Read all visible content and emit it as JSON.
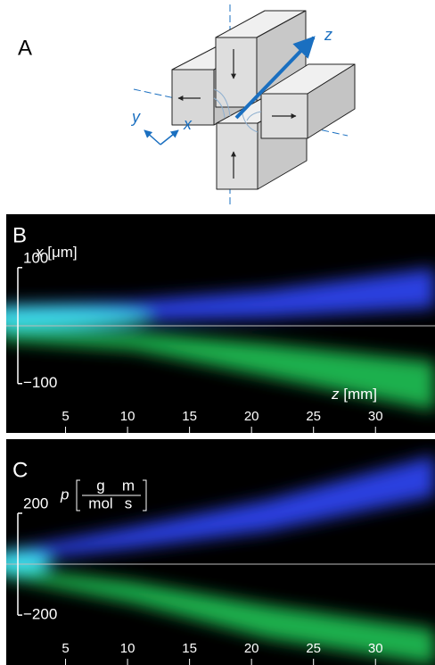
{
  "panels": [
    {
      "label": "A",
      "axes": [
        "x",
        "y",
        "z"
      ]
    },
    {
      "label": "B",
      "y_label": {
        "symbol": "x",
        "unit": "[μm]"
      },
      "z_label": {
        "symbol": "z",
        "unit": "[mm]"
      },
      "zlim": [
        0,
        34.8
      ],
      "zticks": [
        5,
        10,
        15,
        20,
        25,
        30
      ],
      "ylim": [
        -185,
        192
      ],
      "yticks": [
        100,
        {
          "value": -100,
          "label": "−100"
        }
      ]
    },
    {
      "label": "C",
      "y_label": {
        "symbol": "p",
        "unit_num": [
          "g",
          "m"
        ],
        "unit_den": [
          "mol",
          "s"
        ]
      },
      "zlim": [
        0,
        34.8
      ],
      "zticks": [
        5,
        10,
        15,
        20,
        25,
        30
      ],
      "ylim": [
        -396,
        491
      ],
      "yticks": [
        200,
        {
          "value": -200,
          "label": "−200"
        }
      ]
    }
  ]
}
